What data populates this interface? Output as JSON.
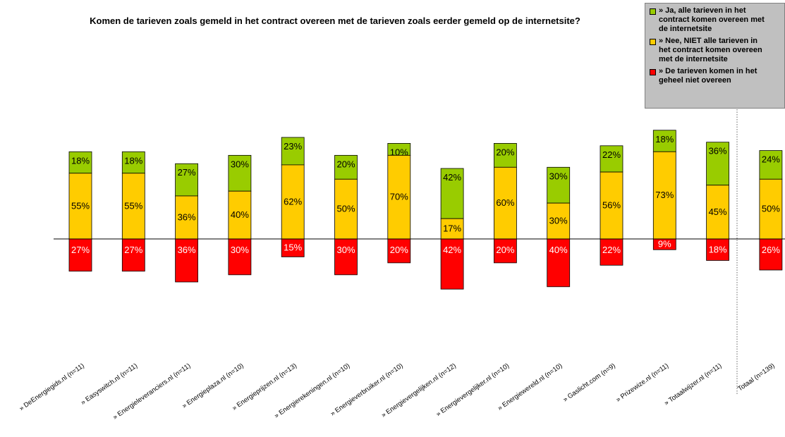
{
  "chart_data": {
    "type": "bar",
    "stacked": true,
    "title": "Komen de tarieven zoals gemeld in het contract overeen met de tarieven zoals eerder gemeld op de internetsite?",
    "categories": [
      "» DeEnergiegids.nl (n=11)",
      "» Easyswitch.nl (n=11)",
      "» Energieleveranciers.nl (n=11)",
      "» Energieplaza.nl (n=10)",
      "» Energieprijzen.nl (n=13)",
      "» Energierekeningen.nl (n=10)",
      "» Energieverbruiker.nl (n=10)",
      "» Energievergelijken.nl (n=12)",
      "» Energievergelijker.nl (n=10)",
      "» Energiewereld.nl (n=10)",
      "» Gaslicht.com (n=9)",
      "» Prizewize.nl (n=11)",
      "» Totaalwijzer.nl (n=11)",
      "Totaal (n=139)"
    ],
    "series": [
      {
        "name": "» Ja, alle tarieven in het contract komen overeen met de internetsite",
        "color": "#99cc00",
        "values": [
          18,
          18,
          27,
          30,
          23,
          20,
          10,
          42,
          20,
          30,
          22,
          18,
          36,
          24
        ]
      },
      {
        "name": "» Nee, NIET alle tarieven in het contract komen overeen met de internetsite",
        "color": "#ffcc00",
        "values": [
          55,
          55,
          36,
          40,
          62,
          50,
          70,
          17,
          60,
          30,
          56,
          73,
          45,
          50
        ]
      },
      {
        "name": "» De tarieven komen in het geheel niet overeen",
        "color": "#ff0000",
        "values": [
          27,
          27,
          36,
          30,
          15,
          30,
          20,
          42,
          20,
          40,
          22,
          9,
          18,
          26
        ]
      }
    ],
    "value_suffix": "%",
    "legend_position": "top-right",
    "grid": false
  },
  "legend": {
    "items": [
      {
        "label": "» Ja, alle tarieven in het\ncontract komen overeen met\nde internetsite",
        "color": "#99cc00"
      },
      {
        "label": "» Nee, NIET alle tarieven in\nhet contract komen overeen\nmet de internetsite",
        "color": "#ffcc00"
      },
      {
        "label": "» De tarieven komen in het\ngeheel niet overeen",
        "color": "#ff0000"
      }
    ]
  }
}
